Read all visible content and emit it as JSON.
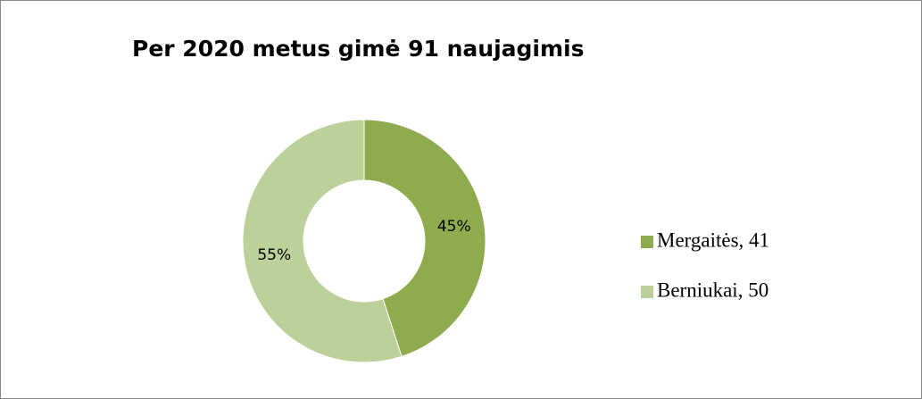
{
  "chart_data": {
    "type": "donut",
    "title": "Per 2020 metus gimė 91 naujagimis",
    "categories": [
      "Mergaitės, 41",
      "Berniukai, 50"
    ],
    "values": [
      45,
      55
    ],
    "value_labels": [
      "45%",
      "55%"
    ],
    "colors": [
      "#8eac4e",
      "#bcd09a"
    ],
    "legend": "right"
  }
}
